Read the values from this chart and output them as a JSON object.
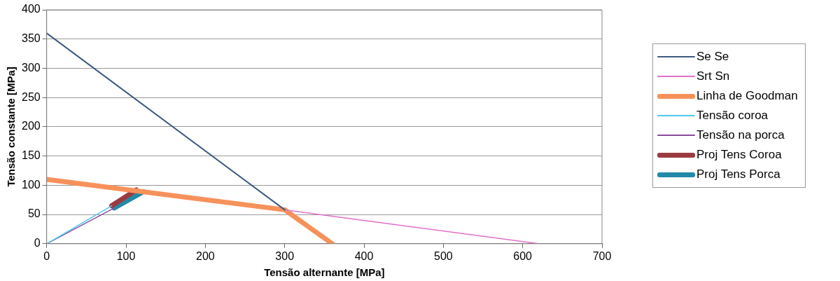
{
  "chart_data": {
    "type": "line",
    "xlabel": "Tensão alternante [MPa]",
    "ylabel": "Tensão constante [MPa]",
    "xlim": [
      0,
      700
    ],
    "xticks": [
      0,
      100,
      200,
      300,
      400,
      500,
      600,
      700
    ],
    "ylim": [
      0,
      400
    ],
    "yticks": [
      0,
      50,
      100,
      150,
      200,
      250,
      300,
      350,
      400
    ],
    "grid": "y",
    "legend": "right",
    "marker": "none",
    "line_style": "solid",
    "series": [
      {
        "name": "Se Se",
        "color": "#3d5a80",
        "x": [
          0,
          300
        ],
        "values": [
          360,
          58
        ]
      },
      {
        "name": "Srt Sn",
        "color": "#e070c8",
        "x": [
          300,
          620
        ],
        "values": [
          58,
          0
        ]
      },
      {
        "name": "Linha de Goodman",
        "color": "#f7915a",
        "x": [
          0,
          300,
          360
        ],
        "values": [
          110,
          58,
          0
        ]
      },
      {
        "name": "Tensão coroa",
        "color": "#4ec8f0",
        "x": [
          0,
          82
        ],
        "values": [
          0,
          65
        ]
      },
      {
        "name": "Tensão na porca",
        "color": "#8a4a9e",
        "x": [
          0,
          85
        ],
        "values": [
          0,
          61
        ]
      },
      {
        "name": "Proj Tens Coroa",
        "color": "#9b3b40",
        "x": [
          82,
          113
        ],
        "values": [
          65,
          92
        ]
      },
      {
        "name": "Proj Tens Porca",
        "color": "#2389a8",
        "x": [
          85,
          122
        ],
        "values": [
          61,
          89
        ]
      }
    ]
  }
}
